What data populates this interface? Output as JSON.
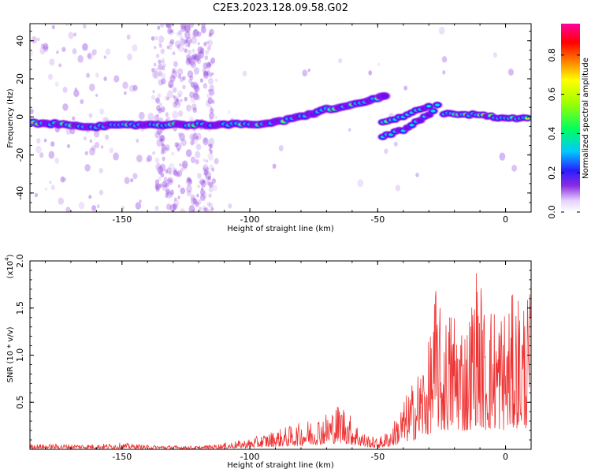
{
  "title": "C2E3.2023.128.09.58.G02",
  "colors": {
    "snr_line": "#ee3333",
    "background": "#ffffff"
  },
  "chart_data": [
    {
      "type": "heatmap",
      "xlabel": "Height of straight line (km)",
      "ylabel": "Frequency (Hz)",
      "xlim": [
        -186,
        10
      ],
      "ylim": [
        -50,
        49
      ],
      "x_ticks": [
        -150,
        -100,
        -50,
        0
      ],
      "x_tick_labels": [
        "-150",
        "-100",
        "-50",
        "0"
      ],
      "y_ticks": [
        40,
        20,
        0,
        -20,
        -40
      ],
      "y_tick_labels": [
        "40",
        "20",
        "0",
        "-20",
        "-40"
      ],
      "ridge": {
        "description_points_km_hz": [
          [
            -186,
            -3
          ],
          [
            -160,
            -5
          ],
          [
            -140,
            -4
          ],
          [
            -120,
            -4
          ],
          [
            -110,
            -4
          ],
          [
            -100,
            -4
          ],
          [
            -90,
            -3
          ],
          [
            -80,
            0
          ],
          [
            -70,
            4
          ],
          [
            -60,
            6
          ],
          [
            -50,
            10
          ],
          [
            -46,
            11
          ]
        ],
        "branch_lower": [
          [
            -48,
            -10
          ],
          [
            -40,
            -7
          ],
          [
            -30,
            1
          ],
          [
            -25,
            8
          ]
        ],
        "branch_mid": [
          [
            -48,
            -3
          ],
          [
            -40,
            0
          ],
          [
            -30,
            6
          ],
          [
            -28,
            10
          ]
        ],
        "branch_right": [
          [
            -24,
            2
          ],
          [
            -10,
            1
          ],
          [
            0,
            -1
          ],
          [
            10,
            0
          ]
        ]
      },
      "colorbar": {
        "label": "Normalized spectral amplitude",
        "ticks": [
          0.0,
          0.2,
          0.4,
          0.6,
          0.8
        ],
        "tick_labels": [
          "0.0",
          "0.2",
          "0.4",
          "0.6",
          "0.8"
        ],
        "range": [
          0,
          0.96
        ],
        "colormap": "rainbow"
      }
    },
    {
      "type": "line",
      "xlabel": "Height of straight line (km)",
      "ylabel": "SNR (10 * v/v)",
      "scale_label": "(x10",
      "scale_exp": "4",
      "scale_close": ")",
      "xlim": [
        -186,
        10
      ],
      "ylim": [
        0,
        2.0
      ],
      "x_ticks": [
        -150,
        -100,
        -50,
        0
      ],
      "x_tick_labels": [
        "-150",
        "-100",
        "-50",
        "0"
      ],
      "y_ticks": [
        0.5,
        1.0,
        1.5,
        2.0
      ],
      "y_tick_labels": [
        "0.5",
        "1.0",
        "1.5",
        "2.0"
      ],
      "envelope_km_x10e4": [
        [
          -186,
          0.05
        ],
        [
          -160,
          0.05
        ],
        [
          -150,
          0.06
        ],
        [
          -140,
          0.04
        ],
        [
          -120,
          0.03
        ],
        [
          -110,
          0.06
        ],
        [
          -100,
          0.1
        ],
        [
          -90,
          0.18
        ],
        [
          -80,
          0.25
        ],
        [
          -70,
          0.35
        ],
        [
          -64,
          0.45
        ],
        [
          -60,
          0.3
        ],
        [
          -55,
          0.15
        ],
        [
          -50,
          0.1
        ],
        [
          -45,
          0.2
        ],
        [
          -40,
          0.45
        ],
        [
          -35,
          0.7
        ],
        [
          -30,
          1.0
        ],
        [
          -27,
          1.6
        ],
        [
          -25,
          1.2
        ],
        [
          -20,
          1.4
        ],
        [
          -15,
          1.2
        ],
        [
          -11,
          1.8
        ],
        [
          -8,
          1.3
        ],
        [
          -5,
          1.4
        ],
        [
          0,
          1.35
        ],
        [
          5,
          1.5
        ],
        [
          10,
          1.45
        ]
      ]
    }
  ]
}
